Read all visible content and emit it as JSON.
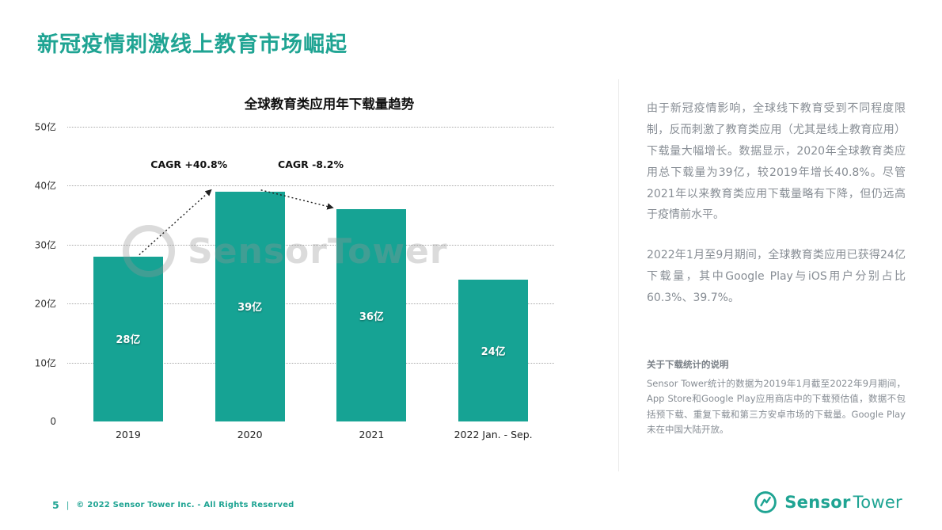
{
  "page": {
    "title": "新冠疫情刺激线上教育市场崛起",
    "footer": {
      "page_number": "5",
      "separator": "|",
      "copyright": "© 2022 Sensor Tower Inc. - All Rights Reserved"
    },
    "brand": {
      "sensor": "Sensor",
      "tower": "Tower"
    }
  },
  "colors": {
    "accent": "#1FA493",
    "bar": "#16A394",
    "text_gray": "#878D94"
  },
  "chart_data": {
    "type": "bar",
    "title": "全球教育类应用年下载量趋势",
    "categories": [
      "2019",
      "2020",
      "2021",
      "2022 Jan. - Sep."
    ],
    "values": [
      28,
      39,
      36,
      24
    ],
    "bar_labels": [
      "28亿",
      "39亿",
      "36亿",
      "24亿"
    ],
    "unit": "亿",
    "ylim": [
      0,
      50
    ],
    "yticks": [
      0,
      10,
      20,
      30,
      40,
      50
    ],
    "ytick_labels": [
      "0",
      "10亿",
      "20亿",
      "30亿",
      "40亿",
      "50亿"
    ],
    "grid": "dotted-horizontal",
    "legend": "none",
    "annotations": [
      {
        "label": "CAGR +40.8%",
        "between": [
          0,
          1
        ]
      },
      {
        "label": "CAGR -8.2%",
        "between": [
          1,
          2
        ]
      }
    ],
    "watermark": "SensorTower"
  },
  "sidebar": {
    "paragraphs": [
      "由于新冠疫情影响，全球线下教育受到不同程度限制，反而刺激了教育类应用（尤其是线上教育应用）下载量大幅增长。数据显示，2020年全球教育类应用总下载量为39亿，较2019年增长40.8%。尽管2021年以来教育类应用下载量略有下降，但仍远高于疫情前水平。",
      "2022年1月至9月期间，全球教育类应用已获得24亿下载量，其中Google Play与iOS用户分别占比60.3%、39.7%。"
    ],
    "note_title": "关于下载统计的说明",
    "note_body": "Sensor Tower统计的数据为2019年1月截至2022年9月期间，App Store和Google Play应用商店中的下载预估值，数据不包括预下载、重复下载和第三方安卓市场的下载量。Google Play未在中国大陆开放。"
  }
}
